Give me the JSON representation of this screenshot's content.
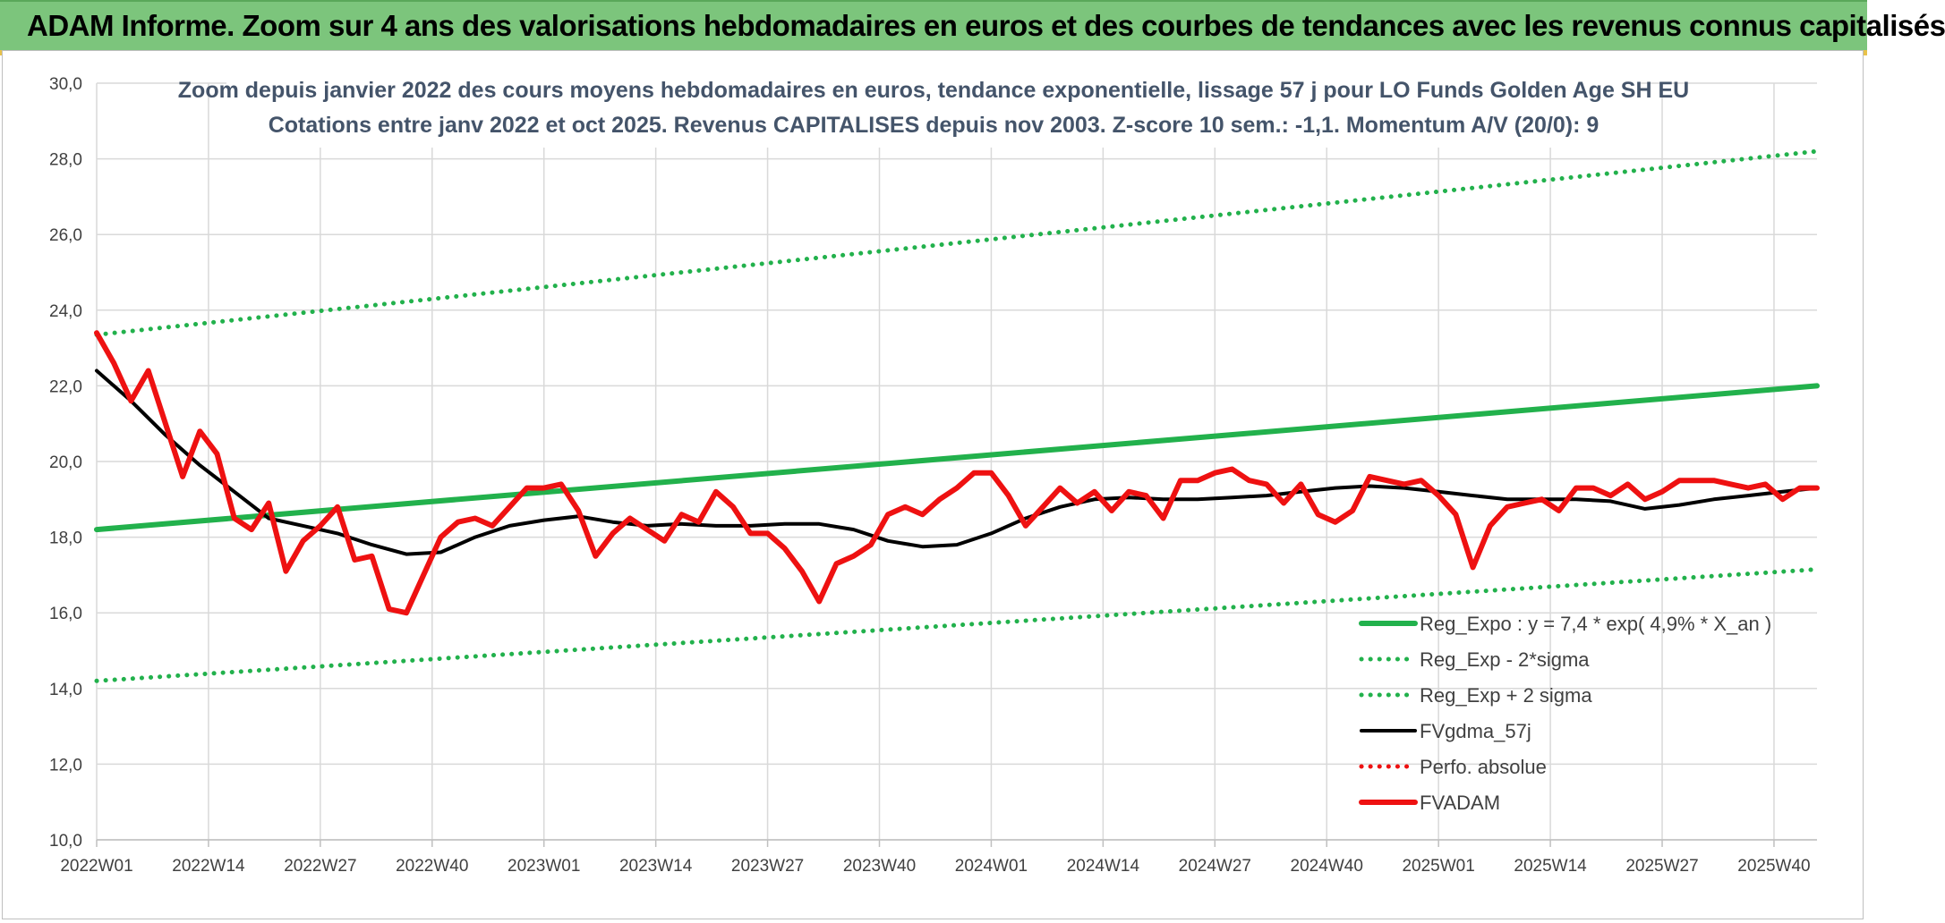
{
  "header": {
    "title": "ADAM Informe. Zoom sur 4 ans des valorisations hebdomadaires en euros et des courbes de tendances avec les revenus connus capitalisés"
  },
  "colors": {
    "header_bg": "#7cc57c",
    "trend": "#22b14c",
    "fvgdma": "#000000",
    "fvadam": "#ee1111",
    "perfo": "#ee1111"
  },
  "chart_data": {
    "type": "line",
    "title": "Zoom depuis janvier 2022 des cours moyens hebdomadaires en euros, tendance exponentielle, lissage 57 j pour LO Funds Golden Age SH EU",
    "subtitle": "Cotations entre janv 2022 et oct 2025. Revenus CAPITALISES depuis nov 2003. Z-score 10 sem.: -1,1. Momentum A/V (20/0): 9",
    "ylim": [
      10,
      30
    ],
    "y_ticks": [
      "10,0",
      "12,0",
      "14,0",
      "16,0",
      "18,0",
      "20,0",
      "22,0",
      "24,0",
      "26,0",
      "28,0",
      "30,0"
    ],
    "x_ticks": [
      "2022W01",
      "2022W14",
      "2022W27",
      "2022W40",
      "2023W01",
      "2023W14",
      "2023W27",
      "2023W40",
      "2024W01",
      "2024W14",
      "2024W27",
      "2024W40",
      "2025W01",
      "2025W14",
      "2025W27",
      "2025W40"
    ],
    "x_range_weeks": [
      0,
      200
    ],
    "grid": true,
    "legend_position": "bottom-right",
    "series": [
      {
        "name": "Reg_Expo : y = 7,4 * exp( 4,9% *  X_an )",
        "style": "solid-thick",
        "color": "#22b14c",
        "x": [
          0,
          200
        ],
        "y": [
          18.2,
          22.0
        ]
      },
      {
        "name": "Reg_Exp - 2*sigma",
        "style": "dotted",
        "color": "#22b14c",
        "x": [
          0,
          200
        ],
        "y": [
          14.2,
          17.15
        ]
      },
      {
        "name": "Reg_Exp + 2 sigma",
        "style": "dotted",
        "color": "#22b14c",
        "x": [
          0,
          200
        ],
        "y": [
          23.35,
          28.2
        ]
      },
      {
        "name": "FVgdma_57j",
        "style": "solid",
        "color": "#000000",
        "x": [
          0,
          4,
          8,
          12,
          16,
          20,
          24,
          28,
          32,
          36,
          40,
          44,
          48,
          52,
          56,
          60,
          64,
          68,
          72,
          76,
          80,
          84,
          88,
          92,
          96,
          100,
          104,
          108,
          112,
          116,
          120,
          124,
          128,
          132,
          136,
          140,
          144,
          148,
          152,
          156,
          160,
          164,
          168,
          172,
          176,
          180,
          184,
          188,
          192,
          196,
          200
        ],
        "y": [
          22.4,
          21.6,
          20.7,
          19.9,
          19.2,
          18.5,
          18.3,
          18.1,
          17.8,
          17.55,
          17.6,
          18.0,
          18.3,
          18.45,
          18.55,
          18.4,
          18.3,
          18.35,
          18.3,
          18.3,
          18.35,
          18.35,
          18.2,
          17.9,
          17.75,
          17.8,
          18.1,
          18.5,
          18.8,
          19.0,
          19.05,
          19.0,
          19.0,
          19.05,
          19.1,
          19.2,
          19.3,
          19.35,
          19.3,
          19.2,
          19.1,
          19.0,
          19.0,
          19.0,
          18.95,
          18.75,
          18.85,
          19.0,
          19.1,
          19.2,
          19.3
        ]
      },
      {
        "name": "Perfo. absolue",
        "style": "dotted",
        "color": "#ee1111",
        "x": [],
        "y": []
      },
      {
        "name": "FVADAM",
        "style": "solid-thick",
        "color": "#ee1111",
        "x": [
          0,
          2,
          4,
          6,
          8,
          10,
          12,
          14,
          16,
          18,
          20,
          22,
          24,
          26,
          28,
          30,
          32,
          34,
          36,
          38,
          40,
          42,
          44,
          46,
          48,
          50,
          52,
          54,
          56,
          58,
          60,
          62,
          64,
          66,
          68,
          70,
          72,
          74,
          76,
          78,
          80,
          82,
          84,
          86,
          88,
          90,
          92,
          94,
          96,
          98,
          100,
          102,
          104,
          106,
          108,
          110,
          112,
          114,
          116,
          118,
          120,
          122,
          124,
          126,
          128,
          130,
          132,
          134,
          136,
          138,
          140,
          142,
          144,
          146,
          148,
          150,
          152,
          154,
          156,
          158,
          160,
          162,
          164,
          166,
          168,
          170,
          172,
          174,
          176,
          178,
          180,
          182,
          184,
          186,
          188,
          190,
          192,
          194,
          196,
          198,
          200
        ],
        "y": [
          23.4,
          22.6,
          21.6,
          22.4,
          21.0,
          19.6,
          20.8,
          20.2,
          18.5,
          18.2,
          18.9,
          17.1,
          17.9,
          18.3,
          18.8,
          17.4,
          17.5,
          16.1,
          16.0,
          17.0,
          18.0,
          18.4,
          18.5,
          18.3,
          18.8,
          19.3,
          19.3,
          19.4,
          18.7,
          17.5,
          18.1,
          18.5,
          18.2,
          17.9,
          18.6,
          18.4,
          19.2,
          18.8,
          18.1,
          18.1,
          17.7,
          17.1,
          16.3,
          17.3,
          17.5,
          17.8,
          18.6,
          18.8,
          18.6,
          19.0,
          19.3,
          19.7,
          19.7,
          19.1,
          18.3,
          18.8,
          19.3,
          18.9,
          19.2,
          18.7,
          19.2,
          19.1,
          18.5,
          19.5,
          19.5,
          19.7,
          19.8,
          19.5,
          19.4,
          18.9,
          19.4,
          18.6,
          18.4,
          18.7,
          19.6,
          19.5,
          19.4,
          19.5,
          19.1,
          18.6,
          17.2,
          18.3,
          18.8,
          18.9,
          19.0,
          18.7,
          19.3,
          19.3,
          19.1,
          19.4,
          19.0,
          19.2,
          19.5,
          19.5,
          19.5,
          19.4,
          19.3,
          19.4,
          19.0,
          19.3,
          19.3
        ]
      }
    ]
  }
}
